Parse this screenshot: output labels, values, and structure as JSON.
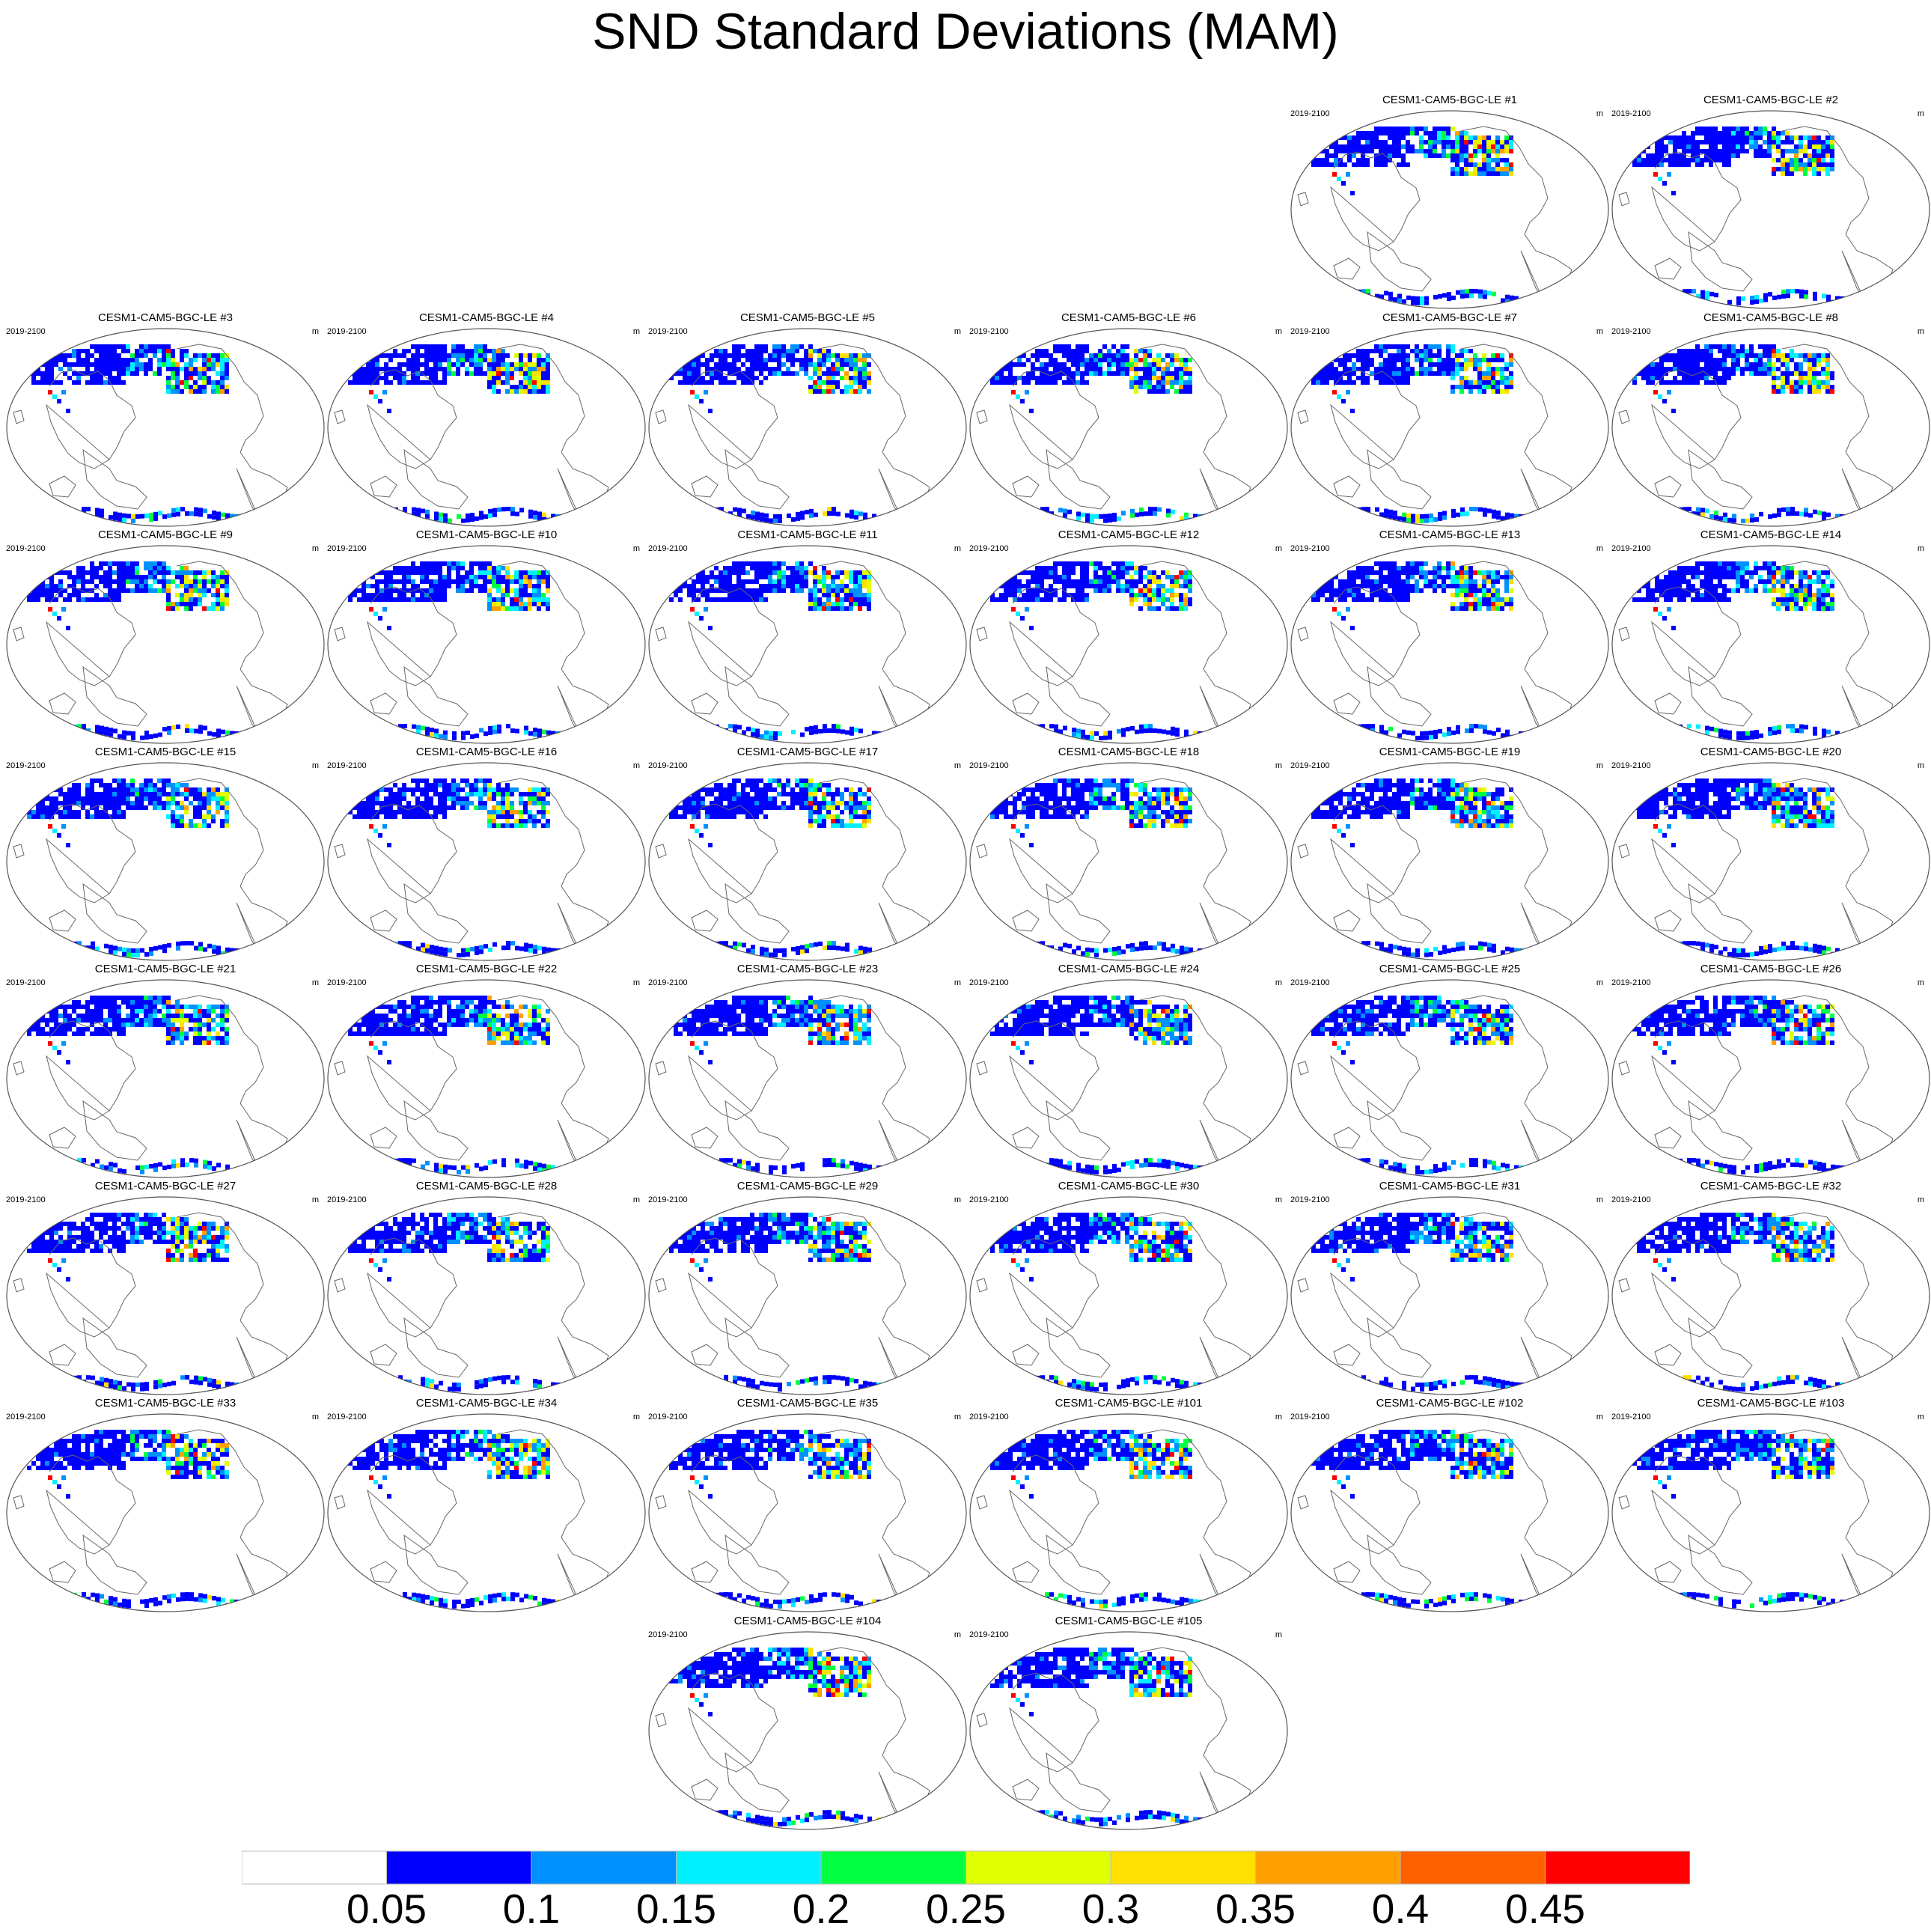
{
  "title": "SND Standard Deviations (MAM)",
  "period": "2019-2100",
  "units": "m",
  "panels": [
    {
      "label": "CESM1-CAM5-BGC-LE #1"
    },
    {
      "label": "CESM1-CAM5-BGC-LE #2"
    },
    {
      "label": "CESM1-CAM5-BGC-LE #3"
    },
    {
      "label": "CESM1-CAM5-BGC-LE #4"
    },
    {
      "label": "CESM1-CAM5-BGC-LE #5"
    },
    {
      "label": "CESM1-CAM5-BGC-LE #6"
    },
    {
      "label": "CESM1-CAM5-BGC-LE #7"
    },
    {
      "label": "CESM1-CAM5-BGC-LE #8"
    },
    {
      "label": "CESM1-CAM5-BGC-LE #9"
    },
    {
      "label": "CESM1-CAM5-BGC-LE #10"
    },
    {
      "label": "CESM1-CAM5-BGC-LE #11"
    },
    {
      "label": "CESM1-CAM5-BGC-LE #12"
    },
    {
      "label": "CESM1-CAM5-BGC-LE #13"
    },
    {
      "label": "CESM1-CAM5-BGC-LE #14"
    },
    {
      "label": "CESM1-CAM5-BGC-LE #15"
    },
    {
      "label": "CESM1-CAM5-BGC-LE #16"
    },
    {
      "label": "CESM1-CAM5-BGC-LE #17"
    },
    {
      "label": "CESM1-CAM5-BGC-LE #18"
    },
    {
      "label": "CESM1-CAM5-BGC-LE #19"
    },
    {
      "label": "CESM1-CAM5-BGC-LE #20"
    },
    {
      "label": "CESM1-CAM5-BGC-LE #21"
    },
    {
      "label": "CESM1-CAM5-BGC-LE #22"
    },
    {
      "label": "CESM1-CAM5-BGC-LE #23"
    },
    {
      "label": "CESM1-CAM5-BGC-LE #24"
    },
    {
      "label": "CESM1-CAM5-BGC-LE #25"
    },
    {
      "label": "CESM1-CAM5-BGC-LE #26"
    },
    {
      "label": "CESM1-CAM5-BGC-LE #27"
    },
    {
      "label": "CESM1-CAM5-BGC-LE #28"
    },
    {
      "label": "CESM1-CAM5-BGC-LE #29"
    },
    {
      "label": "CESM1-CAM5-BGC-LE #30"
    },
    {
      "label": "CESM1-CAM5-BGC-LE #31"
    },
    {
      "label": "CESM1-CAM5-BGC-LE #32"
    },
    {
      "label": "CESM1-CAM5-BGC-LE #33"
    },
    {
      "label": "CESM1-CAM5-BGC-LE #34"
    },
    {
      "label": "CESM1-CAM5-BGC-LE #35"
    },
    {
      "label": "CESM1-CAM5-BGC-LE #101"
    },
    {
      "label": "CESM1-CAM5-BGC-LE #102"
    },
    {
      "label": "CESM1-CAM5-BGC-LE #103"
    },
    {
      "label": "CESM1-CAM5-BGC-LE #104"
    },
    {
      "label": "CESM1-CAM5-BGC-LE #105"
    }
  ],
  "colorbar": {
    "levels": [
      "0.05",
      "0.1",
      "0.15",
      "0.2",
      "0.25",
      "0.3",
      "0.35",
      "0.4",
      "0.45"
    ],
    "colors": [
      "#ffffff",
      "#0000ff",
      "#0091ff",
      "#00f0ff",
      "#00ff40",
      "#e0ff00",
      "#ffe000",
      "#ffa000",
      "#ff6000",
      "#ff0000"
    ]
  }
}
